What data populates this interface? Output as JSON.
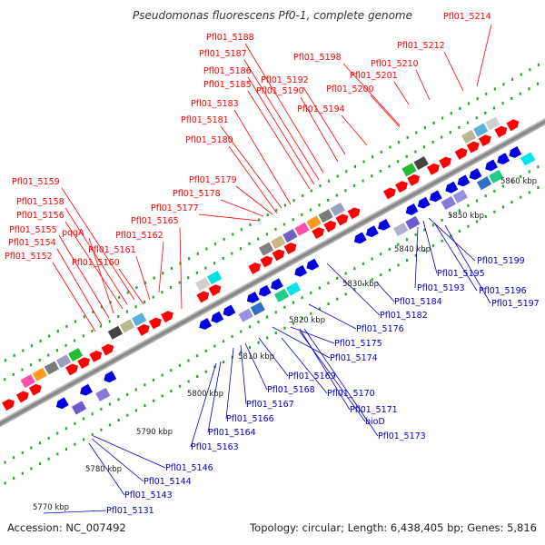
{
  "title": "Pseudomonas fluorescens Pf0-1, complete genome",
  "footer": {
    "accession": "Accession: NC_007492",
    "summary": "Topology: circular; Length: 6,438,405 bp; Genes: 5,816"
  },
  "colors": {
    "forward_label": "#ff0000",
    "reverse_label": "#0000d0",
    "forward_gene": "#ff0000",
    "reverse_gene": "#0000e0",
    "backbone": "#8a8a8a",
    "ticks": "#22aa22"
  },
  "scale_labels": [
    "5770 kbp",
    "5780 kbp",
    "5790 kbp",
    "5800 kbp",
    "5810 kbp",
    "5820 kbp",
    "5830 kbp",
    "5840 kbp",
    "5850 kbp",
    "5860 kbp"
  ],
  "forward_labels": [
    "Pfl01_5214",
    "Pfl01_5212",
    "Pfl01_5210",
    "Pfl01_5201",
    "Pfl01_5200",
    "Pfl01_5198",
    "Pfl01_5194",
    "Pfl01_5192",
    "Pfl01_5190",
    "Pfl01_5188",
    "Pfl01_5187",
    "Pfl01_5186",
    "Pfl01_5185",
    "Pfl01_5183",
    "Pfl01_5181",
    "Pfl01_5180",
    "Pfl01_5179",
    "Pfl01_5178",
    "Pfl01_5177",
    "Pfl01_5165",
    "Pfl01_5162",
    "Pfl01_5161",
    "Pfl01_5160",
    "Pfl01_5159",
    "Pfl01_5158",
    "Pfl01_5156",
    "pqqA",
    "Pfl01_5155",
    "Pfl01_5154",
    "Pfl01_5152"
  ],
  "reverse_labels": [
    "Pfl01_5199",
    "Pfl01_5195",
    "Pfl01_5196",
    "Pfl01_5193",
    "Pfl01_5197",
    "Pfl01_5184",
    "Pfl01_5182",
    "Pfl01_5176",
    "Pfl01_5175",
    "Pfl01_5174",
    "Pfl01_5169",
    "Pfl01_5170",
    "Pfl01_5168",
    "Pfl01_5171",
    "Pfl01_5167",
    "bioD",
    "Pfl01_5166",
    "Pfl01_5173",
    "Pfl01_5164",
    "Pfl01_5163",
    "Pfl01_5146",
    "Pfl01_5144",
    "Pfl01_5143",
    "Pfl01_5131"
  ]
}
